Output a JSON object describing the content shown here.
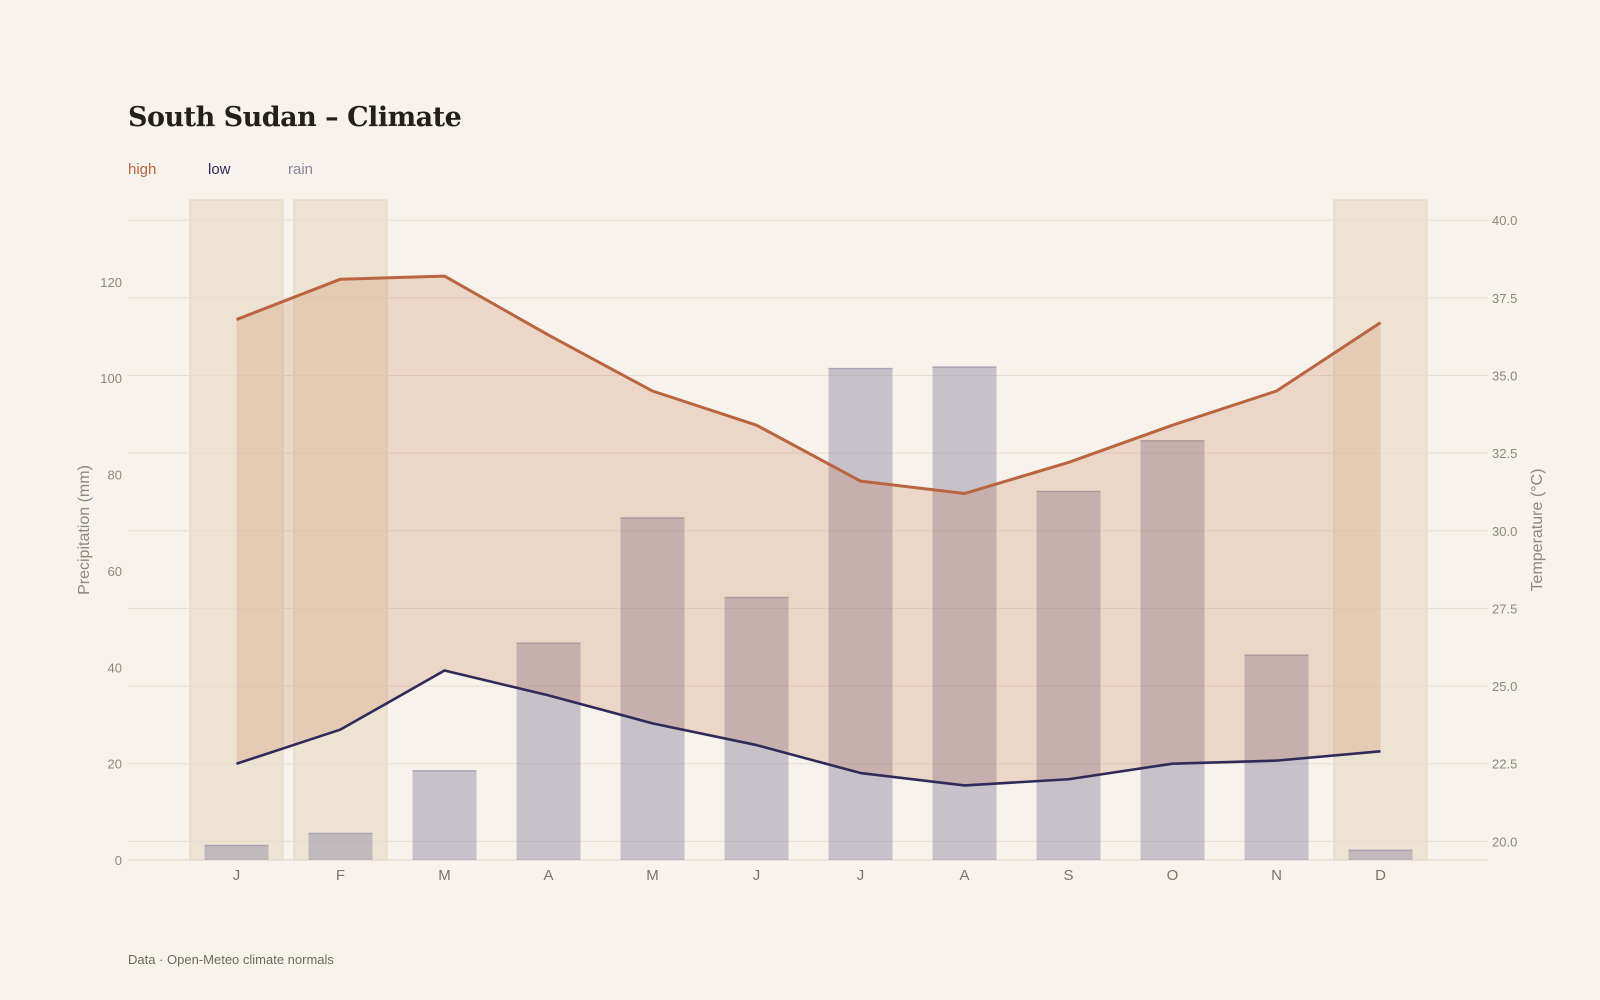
{
  "chart_data": {
    "type": "bar-line",
    "title": "South Sudan – Climate",
    "legend": [
      {
        "label": "high",
        "color": "#b9653f"
      },
      {
        "label": "low",
        "color": "#2e2b5a"
      },
      {
        "label": "rain",
        "color": "#8b86a0"
      }
    ],
    "categories": [
      "J",
      "F",
      "M",
      "A",
      "M",
      "J",
      "J",
      "A",
      "S",
      "O",
      "N",
      "D"
    ],
    "highlighted_months": [
      0,
      1,
      11
    ],
    "series": [
      {
        "name": "rain",
        "type": "bar",
        "axis": "left",
        "values": [
          3,
          5.5,
          18.5,
          45,
          71,
          54.5,
          102,
          102.3,
          76.5,
          87,
          42.5,
          2
        ]
      },
      {
        "name": "high",
        "type": "line",
        "axis": "right",
        "values": [
          36.8,
          38.1,
          38.2,
          36.3,
          34.5,
          33.4,
          31.6,
          31.2,
          32.2,
          33.4,
          34.5,
          36.7
        ]
      },
      {
        "name": "low",
        "type": "line",
        "axis": "right",
        "values": [
          22.5,
          23.6,
          25.5,
          24.7,
          23.8,
          23.1,
          22.2,
          21.8,
          22.0,
          22.5,
          22.6,
          22.9
        ]
      }
    ],
    "y_left": {
      "label": "Precipitation (mm)",
      "ticks": [
        0,
        20,
        40,
        60,
        80,
        100,
        120
      ],
      "range": [
        0,
        137
      ]
    },
    "y_right": {
      "label": "Temperature (°C)",
      "ticks": [
        "20.0",
        "22.5",
        "25.0",
        "27.5",
        "30.0",
        "32.5",
        "35.0",
        "37.5",
        "40.0"
      ],
      "range": [
        19.4,
        40.65
      ]
    },
    "grid": true,
    "source": "Data · Open-Meteo climate normals"
  }
}
